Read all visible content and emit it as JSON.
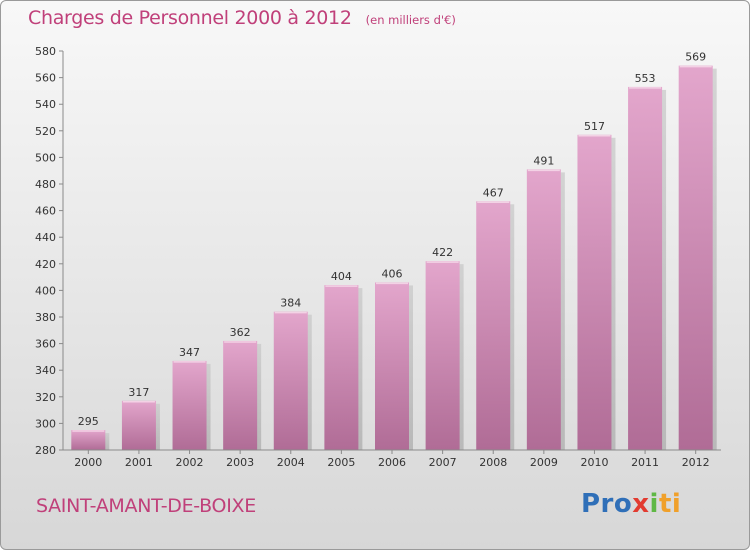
{
  "title": "Charges de Personnel 2000 à 2012",
  "subtitle": "(en milliers d'€)",
  "commune": "SAINT-AMANT-DE-BOIXE",
  "logo": {
    "p1": "Pro",
    "p2": "x",
    "p3": "i",
    "p4": "ti"
  },
  "colors": {
    "bar_top": "#e3a6cc",
    "bar_bottom": "#b06c96",
    "accent": "#c0407a"
  },
  "chart_data": {
    "type": "bar",
    "categories": [
      "2000",
      "2001",
      "2002",
      "2003",
      "2004",
      "2005",
      "2006",
      "2007",
      "2008",
      "2009",
      "2010",
      "2011",
      "2012"
    ],
    "values": [
      295,
      317,
      347,
      362,
      384,
      404,
      406,
      422,
      467,
      491,
      517,
      553,
      569
    ],
    "ylim": [
      280,
      580
    ],
    "yticks": [
      280,
      300,
      320,
      340,
      360,
      380,
      400,
      420,
      440,
      460,
      480,
      500,
      520,
      540,
      560,
      580
    ],
    "grid": false,
    "data_labels": true
  }
}
